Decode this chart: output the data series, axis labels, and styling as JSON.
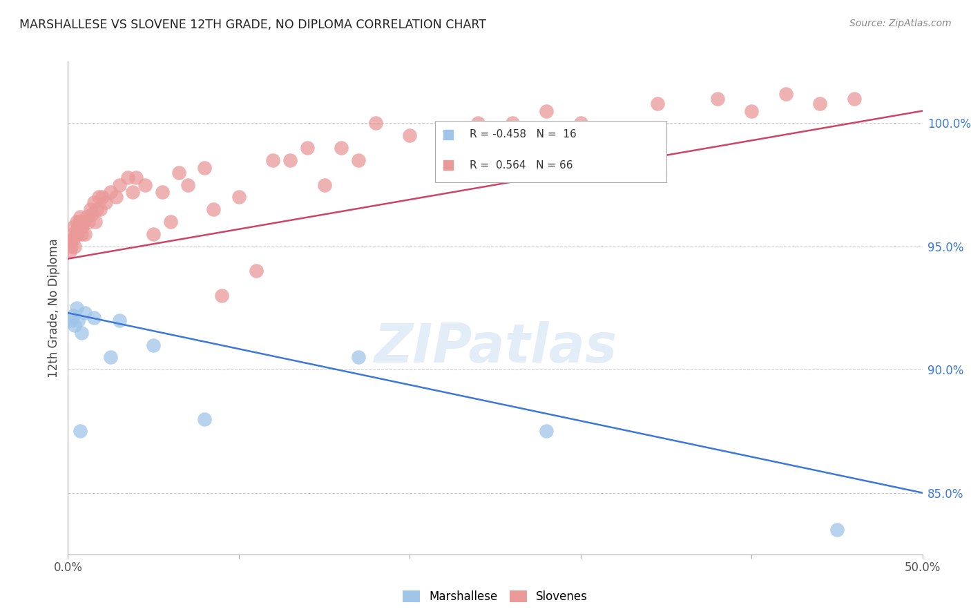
{
  "title": "MARSHALLESE VS SLOVENE 12TH GRADE, NO DIPLOMA CORRELATION CHART",
  "source": "Source: ZipAtlas.com",
  "ylabel": "12th Grade, No Diploma",
  "watermark": "ZIPatlas",
  "legend_blue_r": "R = -0.458",
  "legend_blue_n": "N =  16",
  "legend_pink_r": "R =  0.564",
  "legend_pink_n": "N = 66",
  "blue_color": "#9fc5e8",
  "pink_color": "#ea9999",
  "blue_line_color": "#3c78d8",
  "pink_line_color": "#cc4466",
  "xmin": 0.0,
  "xmax": 50.0,
  "ymin": 82.5,
  "ymax": 102.5,
  "yticks": [
    85.0,
    90.0,
    95.0,
    100.0
  ],
  "blue_line_x0": 0.0,
  "blue_line_y0": 92.3,
  "blue_line_x1": 50.0,
  "blue_line_y1": 85.0,
  "pink_line_x0": 0.0,
  "pink_line_y0": 94.5,
  "pink_line_x1": 50.0,
  "pink_line_y1": 100.5,
  "blue_dots_x": [
    0.2,
    0.3,
    0.4,
    0.5,
    0.6,
    0.8,
    1.0,
    1.5,
    2.5,
    5.0,
    8.0,
    17.0,
    28.0,
    45.0,
    3.0,
    0.7
  ],
  "blue_dots_y": [
    92.0,
    92.2,
    91.8,
    92.5,
    92.0,
    91.5,
    92.3,
    92.1,
    90.5,
    91.0,
    88.0,
    90.5,
    87.5,
    83.5,
    92.0,
    87.5
  ],
  "pink_dots_x": [
    0.1,
    0.15,
    0.2,
    0.25,
    0.3,
    0.35,
    0.4,
    0.45,
    0.5,
    0.55,
    0.6,
    0.65,
    0.7,
    0.8,
    0.85,
    0.9,
    1.0,
    1.1,
    1.2,
    1.3,
    1.4,
    1.5,
    1.6,
    1.7,
    1.8,
    1.9,
    2.0,
    2.2,
    2.5,
    2.8,
    3.0,
    3.5,
    3.8,
    4.0,
    4.5,
    5.0,
    5.5,
    6.0,
    6.5,
    7.0,
    8.0,
    8.5,
    9.0,
    10.0,
    11.0,
    12.0,
    13.0,
    14.0,
    15.0,
    16.0,
    17.0,
    18.0,
    20.0,
    22.0,
    24.0,
    26.0,
    28.0,
    30.0,
    32.0,
    33.0,
    34.5,
    38.0,
    40.0,
    42.0,
    44.0,
    46.0
  ],
  "pink_dots_y": [
    94.8,
    95.2,
    95.0,
    95.5,
    95.3,
    95.8,
    95.0,
    95.5,
    96.0,
    95.5,
    95.8,
    96.0,
    96.2,
    95.5,
    95.8,
    96.0,
    95.5,
    96.2,
    96.0,
    96.5,
    96.3,
    96.8,
    96.0,
    96.5,
    97.0,
    96.5,
    97.0,
    96.8,
    97.2,
    97.0,
    97.5,
    97.8,
    97.2,
    97.8,
    97.5,
    95.5,
    97.2,
    96.0,
    98.0,
    97.5,
    98.2,
    96.5,
    93.0,
    97.0,
    94.0,
    98.5,
    98.5,
    99.0,
    97.5,
    99.0,
    98.5,
    100.0,
    99.5,
    99.5,
    100.0,
    100.0,
    100.5,
    100.0,
    99.5,
    99.5,
    100.8,
    101.0,
    100.5,
    101.2,
    100.8,
    101.0
  ]
}
